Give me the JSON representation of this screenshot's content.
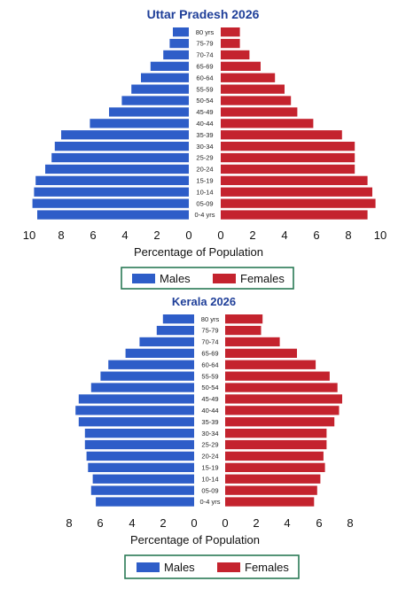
{
  "colors": {
    "male": "#2e5dc8",
    "female": "#c4232e",
    "title": "#1f3f99",
    "legend_border": "#2a7a55"
  },
  "chart_data": [
    {
      "type": "bar",
      "title": "Uttar Pradesh 2026",
      "xlabel": "Percentage of Population",
      "xlim": [
        0,
        10
      ],
      "x_ticks": [
        "10",
        "8",
        "6",
        "4",
        "2",
        "0",
        "0",
        "2",
        "4",
        "6",
        "8",
        "10"
      ],
      "categories": [
        "80 yrs",
        "75-79",
        "70-74",
        "65-69",
        "60-64",
        "55-59",
        "50-54",
        "45-49",
        "40-44",
        "35-39",
        "30-34",
        "25-29",
        "20-24",
        "15-19",
        "10-14",
        "05-09",
        "0-4 yrs"
      ],
      "series": [
        {
          "name": "Males",
          "values": [
            1.0,
            1.2,
            1.6,
            2.4,
            3.0,
            3.6,
            4.2,
            5.0,
            6.2,
            8.0,
            8.4,
            8.6,
            9.0,
            9.6,
            9.7,
            9.8,
            9.5
          ]
        },
        {
          "name": "Females",
          "values": [
            1.2,
            1.2,
            1.8,
            2.5,
            3.4,
            4.0,
            4.4,
            4.8,
            5.8,
            7.6,
            8.4,
            8.4,
            8.4,
            9.2,
            9.5,
            9.7,
            9.2
          ]
        }
      ],
      "legend": "bottom"
    },
    {
      "type": "bar",
      "title": "Kerala 2026",
      "xlabel": "Percentage of Population",
      "xlim": [
        0,
        8
      ],
      "x_ticks": [
        "8",
        "6",
        "4",
        "2",
        "0",
        "0",
        "2",
        "4",
        "6",
        "8"
      ],
      "categories": [
        "80 yrs",
        "75-79",
        "70-74",
        "65-69",
        "60-64",
        "55-59",
        "50-54",
        "45-49",
        "40-44",
        "35-39",
        "30-34",
        "25-29",
        "20-24",
        "15-19",
        "10-14",
        "05-09",
        "0-4 yrs"
      ],
      "series": [
        {
          "name": "Males",
          "values": [
            2.0,
            2.4,
            3.5,
            4.4,
            5.5,
            6.0,
            6.6,
            7.4,
            7.6,
            7.4,
            7.0,
            7.0,
            6.9,
            6.8,
            6.5,
            6.6,
            6.3
          ]
        },
        {
          "name": "Females",
          "values": [
            2.4,
            2.3,
            3.5,
            4.6,
            5.8,
            6.7,
            7.2,
            7.5,
            7.3,
            7.0,
            6.5,
            6.5,
            6.3,
            6.4,
            6.1,
            5.9,
            5.7
          ]
        }
      ],
      "legend": "bottom"
    }
  ]
}
